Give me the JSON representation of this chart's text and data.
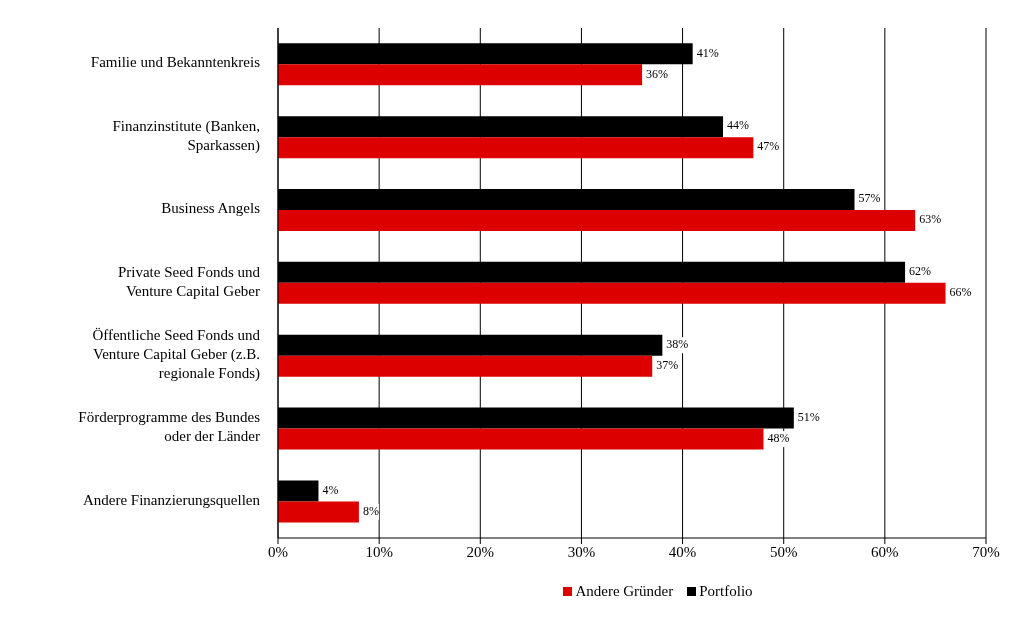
{
  "chart_data": {
    "type": "bar",
    "orientation": "horizontal",
    "categories": [
      "Familie und Bekanntenkreis",
      "Finanzinstitute (Banken, Sparkassen)",
      "Business Angels",
      "Private Seed Fonds und Venture Capital Geber",
      "Öffentliche Seed Fonds und Venture Capital Geber (z.B. regionale Fonds)",
      "Förderprogramme des Bundes oder der Länder",
      "Andere Finanzierungsquellen"
    ],
    "series": [
      {
        "name": "Portfolio",
        "color": "#000000",
        "values": [
          41,
          44,
          57,
          62,
          38,
          51,
          4
        ],
        "value_labels": [
          "41%",
          "44%",
          "57%",
          "62%",
          "38%",
          "51%",
          "4%"
        ]
      },
      {
        "name": "Andere Gründer",
        "color": "#dd0000",
        "values": [
          36,
          47,
          63,
          66,
          37,
          48,
          8
        ],
        "value_labels": [
          "36%",
          "47%",
          "63%",
          "66%",
          "37%",
          "48%",
          "8%"
        ]
      }
    ],
    "xlim": [
      0,
      70
    ],
    "xticks": [
      {
        "value": 0,
        "label": "0%"
      },
      {
        "value": 10,
        "label": "10%"
      },
      {
        "value": 20,
        "label": "20%"
      },
      {
        "value": 30,
        "label": "30%"
      },
      {
        "value": 40,
        "label": "40%"
      },
      {
        "value": 50,
        "label": "50%"
      },
      {
        "value": 60,
        "label": "60%"
      },
      {
        "value": 70,
        "label": "70%"
      }
    ],
    "grid": "x",
    "legend": "bottom"
  }
}
